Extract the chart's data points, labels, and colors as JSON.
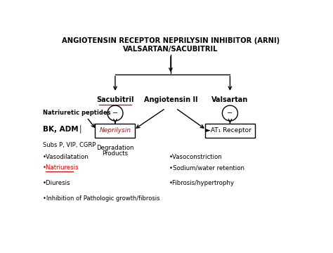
{
  "title_line1": "ANGIOTENSIN RECEPTOR NEPRILYSIN INHIBITOR (ARNI)",
  "title_line2": "VALSARTAN/SACUBITRIL",
  "background_color": "#ffffff",
  "text_color": "#000000",
  "sacubitril_label": "Sacubitril",
  "angiotensin_label": "Angiotensin II",
  "valsartan_label": "Valsartan",
  "neprilysin_label": "Neprilysin",
  "at1_label": "AT₁ Receptor",
  "natriuretic_label": "Natriuretic peptides",
  "bk_adm_label": "BK, ADM│",
  "subs_label": "Subs P, VIP, CGRP",
  "degradation_label": "Degradation",
  "products_label": "Products",
  "vasodilation_label": "•Vasodilatation",
  "natriuresis_label": "•Natriuresis",
  "diuresis_label": "•Diuresis",
  "inhibition_label": "•Inhibition of Pathologic growth/fibrosis",
  "vasoconstriction_label": "•Vasoconstriction",
  "sodium_label": "•Sodium/water retention",
  "fibrosis_label": "•Fibrosis/hypertrophy",
  "minus": "−",
  "arrow_marker": "►",
  "figsize": [
    4.74,
    3.6
  ],
  "dpi": 100
}
